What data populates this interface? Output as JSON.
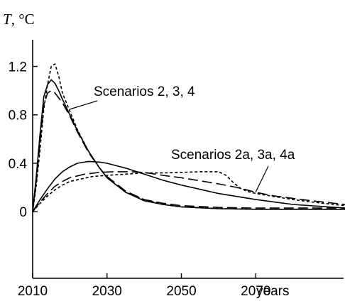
{
  "chart_data": {
    "type": "line",
    "title": "",
    "ylabel_var": "T",
    "ylabel_unit": ", °C",
    "xlabel": "years",
    "xlim": [
      2010,
      2094
    ],
    "ylim": [
      -0.55,
      1.42
    ],
    "x_ticks": [
      2010,
      2030,
      2050,
      2070
    ],
    "x_tick_labels": [
      "2010",
      "2030",
      "2050",
      "2070"
    ],
    "y_ticks": [
      0,
      0.4,
      0.8,
      1.2
    ],
    "y_tick_labels": [
      "0",
      "0.4",
      "0.8",
      "1.2"
    ],
    "grid": false,
    "legend": "none",
    "annotations": [
      {
        "text": "Scenarios 2, 3, 4"
      },
      {
        "text": "Scenarios 2a, 3a, 4a"
      }
    ],
    "series": [
      {
        "style": "solid",
        "points": [
          [
            2010,
            0
          ],
          [
            2011,
            0.3
          ],
          [
            2012,
            0.65
          ],
          [
            2013,
            0.95
          ],
          [
            2014,
            1.05
          ],
          [
            2015,
            1.09
          ],
          [
            2016,
            1.06
          ],
          [
            2017,
            1.0
          ],
          [
            2018,
            0.93
          ],
          [
            2020,
            0.8
          ],
          [
            2022,
            0.67
          ],
          [
            2025,
            0.5
          ],
          [
            2028,
            0.36
          ],
          [
            2030,
            0.28
          ],
          [
            2035,
            0.16
          ],
          [
            2040,
            0.09
          ],
          [
            2045,
            0.06
          ],
          [
            2050,
            0.04
          ],
          [
            2060,
            0.025
          ],
          [
            2070,
            0.02
          ],
          [
            2094,
            0.02
          ]
        ]
      },
      {
        "style": "longdash",
        "points": [
          [
            2010,
            0
          ],
          [
            2011,
            0.25
          ],
          [
            2012,
            0.58
          ],
          [
            2013,
            0.88
          ],
          [
            2014,
            0.98
          ],
          [
            2015,
            1.0
          ],
          [
            2016,
            0.98
          ],
          [
            2018,
            0.9
          ],
          [
            2020,
            0.79
          ],
          [
            2022,
            0.66
          ],
          [
            2025,
            0.49
          ],
          [
            2028,
            0.36
          ],
          [
            2030,
            0.29
          ],
          [
            2035,
            0.17
          ],
          [
            2040,
            0.1
          ],
          [
            2045,
            0.07
          ],
          [
            2050,
            0.05
          ],
          [
            2060,
            0.035
          ],
          [
            2070,
            0.03
          ],
          [
            2094,
            0.03
          ]
        ]
      },
      {
        "style": "shortdash",
        "points": [
          [
            2010,
            0
          ],
          [
            2011,
            0.22
          ],
          [
            2012,
            0.52
          ],
          [
            2013,
            0.85
          ],
          [
            2014,
            1.05
          ],
          [
            2015,
            1.2
          ],
          [
            2016,
            1.22
          ],
          [
            2017,
            1.12
          ],
          [
            2018,
            0.98
          ],
          [
            2020,
            0.83
          ],
          [
            2022,
            0.68
          ],
          [
            2025,
            0.5
          ],
          [
            2028,
            0.36
          ],
          [
            2030,
            0.28
          ],
          [
            2035,
            0.16
          ],
          [
            2040,
            0.1
          ],
          [
            2045,
            0.06
          ],
          [
            2050,
            0.04
          ],
          [
            2060,
            0.025
          ],
          [
            2070,
            0.02
          ],
          [
            2094,
            0.02
          ]
        ]
      },
      {
        "style": "solid",
        "points": [
          [
            2010,
            0
          ],
          [
            2012,
            0.1
          ],
          [
            2014,
            0.19
          ],
          [
            2016,
            0.27
          ],
          [
            2018,
            0.33
          ],
          [
            2020,
            0.37
          ],
          [
            2022,
            0.4
          ],
          [
            2025,
            0.415
          ],
          [
            2028,
            0.41
          ],
          [
            2030,
            0.4
          ],
          [
            2035,
            0.36
          ],
          [
            2040,
            0.31
          ],
          [
            2045,
            0.26
          ],
          [
            2050,
            0.22
          ],
          [
            2060,
            0.15
          ],
          [
            2070,
            0.1
          ],
          [
            2080,
            0.06
          ],
          [
            2094,
            0.03
          ]
        ]
      },
      {
        "style": "longdash",
        "points": [
          [
            2010,
            0
          ],
          [
            2012,
            0.08
          ],
          [
            2014,
            0.15
          ],
          [
            2016,
            0.21
          ],
          [
            2018,
            0.25
          ],
          [
            2020,
            0.28
          ],
          [
            2024,
            0.31
          ],
          [
            2028,
            0.325
          ],
          [
            2032,
            0.33
          ],
          [
            2036,
            0.33
          ],
          [
            2040,
            0.325
          ],
          [
            2045,
            0.3
          ],
          [
            2050,
            0.28
          ],
          [
            2055,
            0.255
          ],
          [
            2060,
            0.23
          ],
          [
            2065,
            0.2
          ],
          [
            2070,
            0.16
          ],
          [
            2075,
            0.13
          ],
          [
            2080,
            0.11
          ],
          [
            2085,
            0.09
          ],
          [
            2094,
            0.06
          ]
        ]
      },
      {
        "style": "shortdash",
        "points": [
          [
            2010,
            0
          ],
          [
            2012,
            0.07
          ],
          [
            2014,
            0.13
          ],
          [
            2016,
            0.18
          ],
          [
            2018,
            0.22
          ],
          [
            2020,
            0.25
          ],
          [
            2023,
            0.27
          ],
          [
            2026,
            0.29
          ],
          [
            2030,
            0.3
          ],
          [
            2035,
            0.31
          ],
          [
            2040,
            0.32
          ],
          [
            2045,
            0.32
          ],
          [
            2050,
            0.325
          ],
          [
            2055,
            0.33
          ],
          [
            2060,
            0.33
          ],
          [
            2062,
            0.3
          ],
          [
            2064,
            0.24
          ],
          [
            2066,
            0.19
          ],
          [
            2068,
            0.165
          ],
          [
            2070,
            0.15
          ],
          [
            2075,
            0.125
          ],
          [
            2080,
            0.1
          ],
          [
            2085,
            0.08
          ],
          [
            2094,
            0.05
          ]
        ]
      }
    ]
  }
}
